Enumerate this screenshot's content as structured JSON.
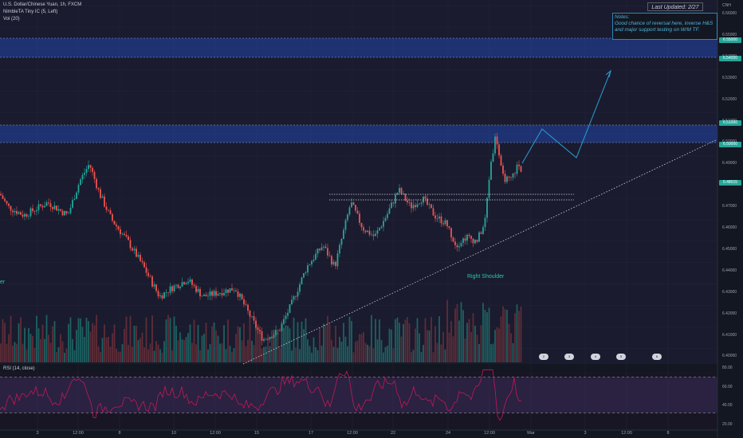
{
  "legend": {
    "symbol": "U.S. Dollar/Chinese Yuan, 1h, FXCM",
    "indicator1": "NimbleTA Tiny IC (5, Left)",
    "indicator2": "Vol (20)"
  },
  "rsi_label": "RSI (14, close)",
  "last_updated": "Last Updated: 2/27",
  "notes": {
    "title": "Notes:",
    "body": "Good chance of reversal here, inverse H&S and major support testing on W/M TF."
  },
  "annotations": {
    "right_shoulder": "Right Shoulder",
    "left_shoulder_fragment": "er"
  },
  "currency": "CNH",
  "y_ticks": [
    "6.56000",
    "6.55000",
    "6.54000",
    "6.53000",
    "6.52000",
    "6.51000",
    "6.50000",
    "6.49000",
    "6.48000",
    "6.47000",
    "6.46000",
    "6.45000",
    "6.44000",
    "6.43000",
    "6.42000",
    "6.41000",
    "6.40000"
  ],
  "price_badges": [
    {
      "value": "6.55000",
      "color": "#26a69a"
    },
    {
      "value": "6.54000",
      "color": "#26a69a"
    },
    {
      "value": "6.51000",
      "color": "#26a69a"
    },
    {
      "value": "6.50000",
      "color": "#26a69a"
    },
    {
      "value": "6.48015",
      "color": "#26a69a"
    }
  ],
  "rsi_ticks": [
    "80.00",
    "60.00",
    "40.00",
    "20.00"
  ],
  "x_ticks": [
    "3",
    "12:00",
    "8",
    "10",
    "12:00",
    "15",
    "17",
    "12:00",
    "22",
    "24",
    "12:00",
    "Mar",
    "3",
    "12:00",
    "8"
  ],
  "events": [
    "2",
    "3",
    "4",
    "5",
    "6"
  ],
  "colors": {
    "background": "#131722",
    "up": "#26a69a",
    "down": "#ef5350",
    "zone": "#2962ff",
    "rsi_line": "#c2185b",
    "rsi_fill": "#7e57c2",
    "trend": "#d1d4dc",
    "projection": "#2a9fd6",
    "notes": "#4fb3d9"
  }
}
